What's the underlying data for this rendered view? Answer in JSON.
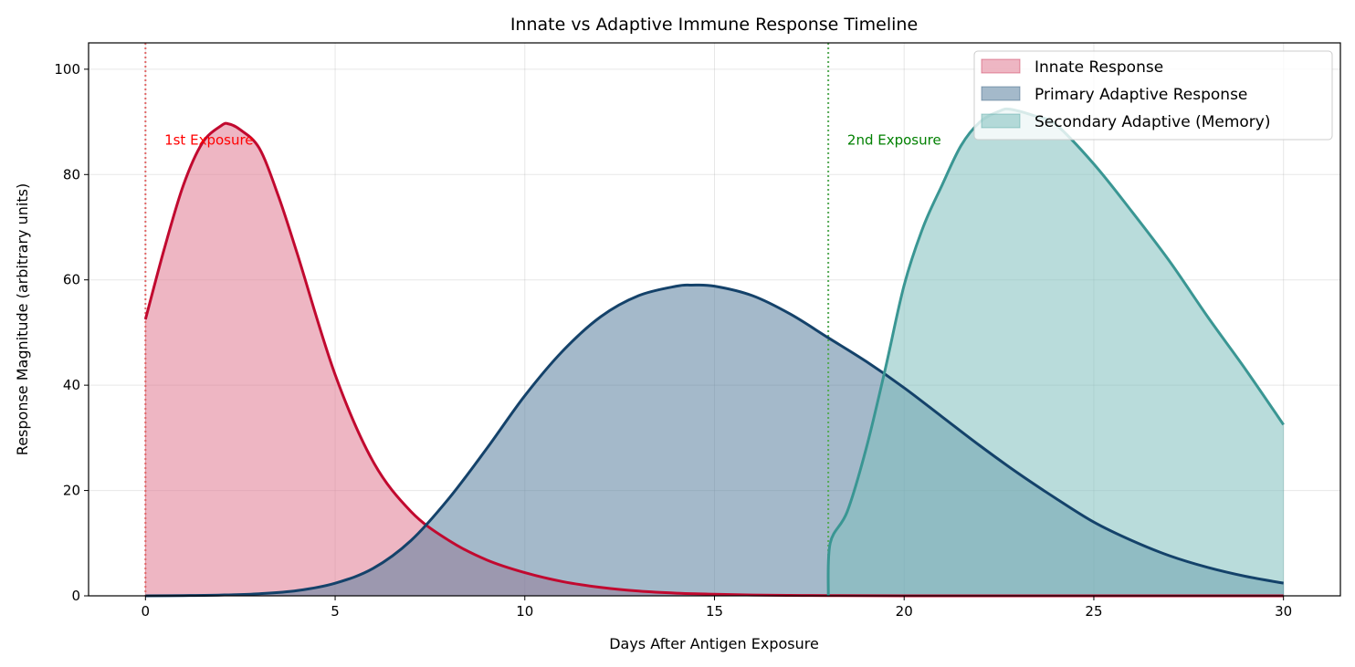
{
  "chart_data": {
    "type": "area",
    "title": "Innate vs Adaptive Immune Response Timeline",
    "xlabel": "Days After Antigen Exposure",
    "ylabel": "Response Magnitude (arbitrary units)",
    "xlim": [
      -1.5,
      31.5
    ],
    "ylim": [
      0,
      105
    ],
    "xticks": [
      0,
      5,
      10,
      15,
      20,
      25,
      30
    ],
    "yticks": [
      0,
      20,
      40,
      60,
      80,
      100
    ],
    "grid": true,
    "legend_position": "top-right",
    "series": [
      {
        "name": "Innate Response",
        "color": "#c1092f",
        "fill": "#e07a92",
        "x": [
          0,
          0.5,
          1,
          1.5,
          2,
          2.2,
          2.5,
          3,
          3.5,
          4,
          5,
          6,
          7,
          8,
          9,
          10,
          11,
          12,
          13,
          14,
          15,
          16,
          17,
          18,
          20,
          25,
          30
        ],
        "y": [
          52.5,
          66,
          78,
          86,
          89.3,
          89.6,
          88.5,
          85,
          76,
          65,
          42,
          25.5,
          16,
          10.5,
          6.8,
          4.4,
          2.7,
          1.6,
          0.9,
          0.5,
          0.3,
          0.15,
          0.08,
          0.04,
          0,
          0,
          0
        ]
      },
      {
        "name": "Primary Adaptive Response",
        "color": "#14426a",
        "fill": "#5a7f9e",
        "x": [
          0,
          1,
          2,
          3,
          4,
          5,
          6,
          7,
          8,
          9,
          10,
          11,
          12,
          13,
          14,
          14.4,
          15,
          16,
          17,
          18,
          19,
          20,
          21,
          22,
          23,
          24,
          25,
          26,
          27,
          28,
          29,
          30
        ],
        "y": [
          0,
          0.05,
          0.15,
          0.4,
          1.0,
          2.4,
          5.2,
          10.5,
          18.5,
          28,
          38,
          46.5,
          53,
          57,
          58.8,
          59,
          58.8,
          57,
          53.5,
          49,
          44.5,
          39.5,
          34,
          28.5,
          23.3,
          18.5,
          14,
          10.5,
          7.6,
          5.4,
          3.7,
          2.4
        ]
      },
      {
        "name": "Secondary Adaptive (Memory)",
        "color": "#3a9693",
        "fill": "#7fc0bd",
        "x": [
          18,
          18.05,
          18.5,
          19,
          19.5,
          20,
          20.5,
          21,
          21.5,
          22,
          22.5,
          22.8,
          23.5,
          24,
          25,
          26,
          27,
          28,
          29,
          30
        ],
        "y": [
          0,
          10,
          16,
          28,
          43,
          59,
          70,
          78,
          85.5,
          90,
          92,
          92.4,
          91,
          89.5,
          82,
          73,
          63.5,
          53,
          43,
          32.5
        ]
      }
    ],
    "vlines": [
      {
        "x": 0,
        "color": "#e06666"
      },
      {
        "x": 18,
        "color": "#55aa55"
      }
    ],
    "annotations": [
      {
        "text": "1st Exposure",
        "x": 0.5,
        "y": 85,
        "color": "#ff0000"
      },
      {
        "text": "2nd Exposure",
        "x": 18.5,
        "y": 85,
        "color": "#008000"
      }
    ]
  }
}
